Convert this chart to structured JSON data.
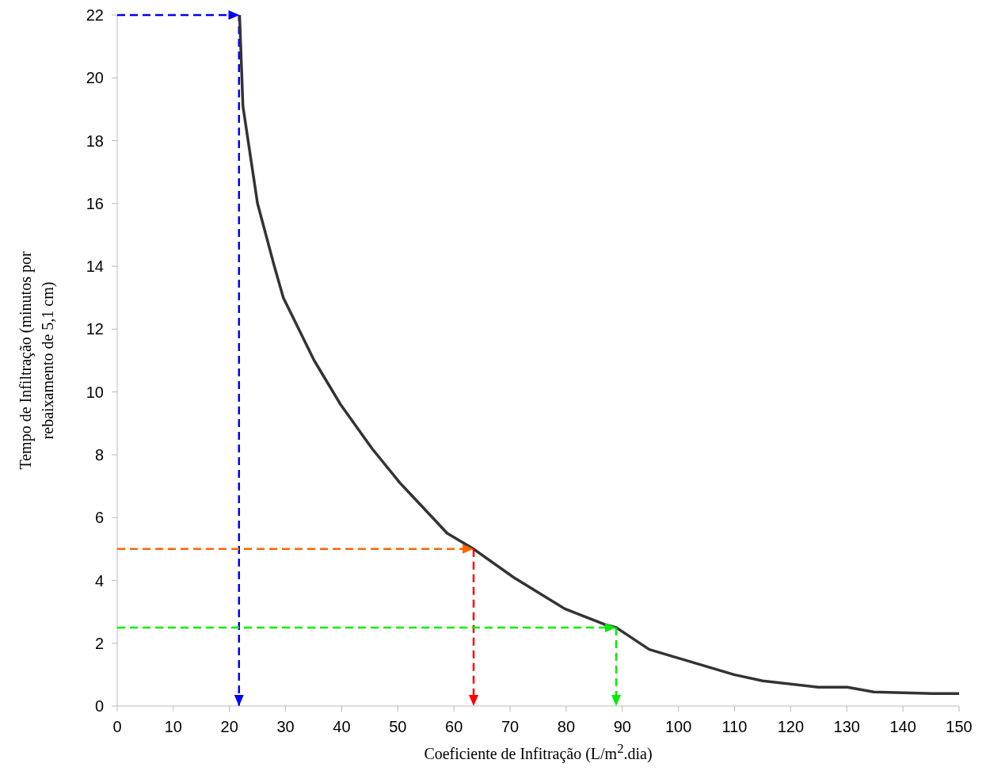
{
  "chart_data": {
    "type": "line",
    "xlabel": "Coeficiente de Infitração (L/m$^{2}$.dia)",
    "ylabel": "Tempo de Infiltração   (minutos por rebaixamento de 5,1 cm)",
    "xlim": [
      0,
      150
    ],
    "xticks": [
      0,
      10,
      20,
      30,
      40,
      50,
      60,
      70,
      80,
      90,
      100,
      110,
      120,
      130,
      140,
      150
    ],
    "ylim": [
      0,
      22
    ],
    "yticks": [
      0,
      2,
      4,
      6,
      8,
      10,
      12,
      14,
      16,
      18,
      20,
      22
    ],
    "grid": false,
    "ref_lines": [
      {
        "axis": "x",
        "value": 21.7,
        "color": "#0000ff",
        "line_style": "dashed"
      }
    ],
    "marker": "none",
    "line_style": "solid",
    "series": [
      {
        "color": "#333333",
        "x": [
          21.8,
          22.4,
          25,
          28,
          29.6,
          35.1,
          39.8,
          45.4,
          50.4,
          54.6,
          58.8,
          63.5,
          70.6,
          79.7,
          86.8,
          88.9,
          94.8,
          109.9,
          115,
          124.9,
          130.1,
          134.8,
          145.2,
          150
        ],
        "values": [
          22,
          19.1,
          16,
          14,
          13,
          11,
          9.6,
          8.2,
          7.1,
          6.3,
          5.5,
          5,
          4.1,
          3.1,
          2.6,
          2.5,
          1.8,
          1,
          0.8,
          0.6,
          0.6,
          0.45,
          0.4,
          0.4
        ]
      }
    ]
  }
}
